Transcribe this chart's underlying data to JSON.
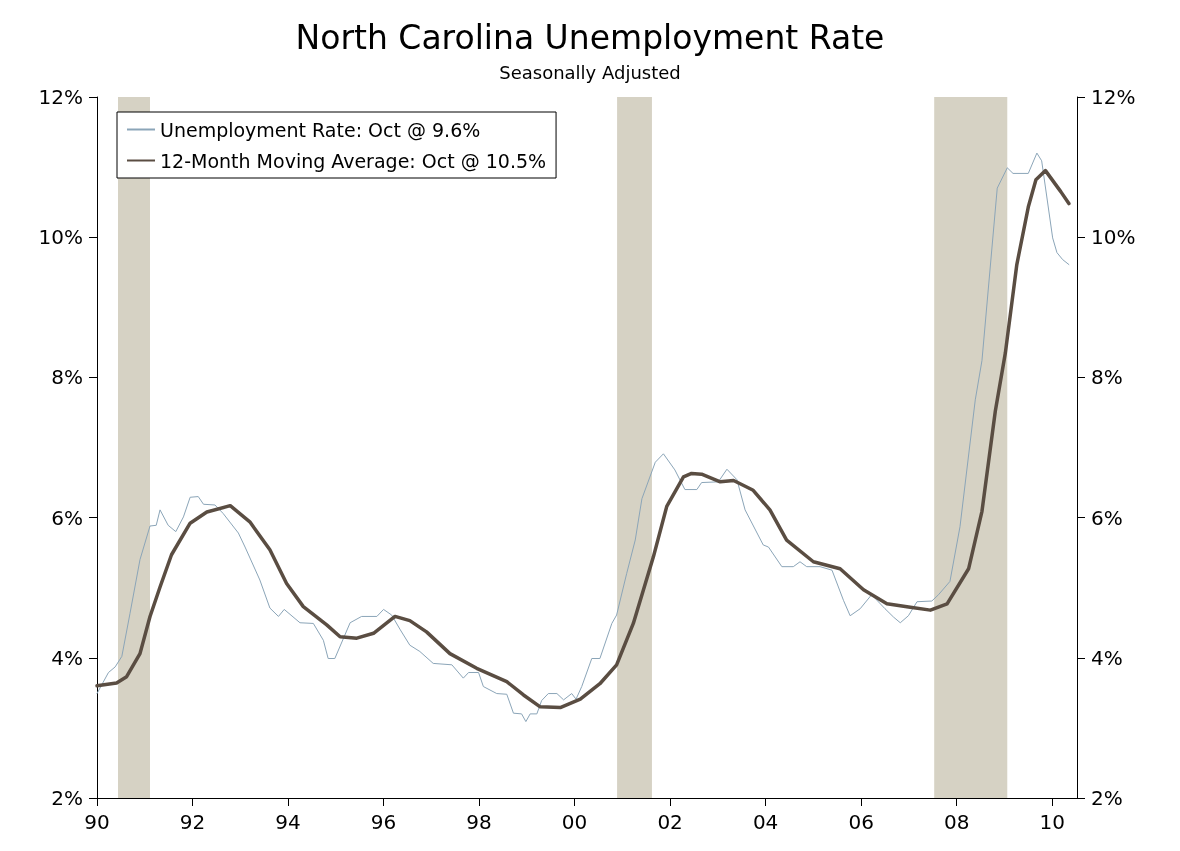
{
  "chart_data": {
    "type": "line",
    "title": "North Carolina Unemployment Rate",
    "subtitle": "Seasonally Adjusted",
    "xlim": [
      1990,
      2010.52
    ],
    "xticks": [
      {
        "value": 1990,
        "label": "90"
      },
      {
        "value": 1992,
        "label": "92"
      },
      {
        "value": 1994,
        "label": "94"
      },
      {
        "value": 1996,
        "label": "96"
      },
      {
        "value": 1998,
        "label": "98"
      },
      {
        "value": 2000,
        "label": "00"
      },
      {
        "value": 2002,
        "label": "02"
      },
      {
        "value": 2004,
        "label": "04"
      },
      {
        "value": 2006,
        "label": "06"
      },
      {
        "value": 2008,
        "label": "08"
      },
      {
        "value": 2010,
        "label": "10"
      }
    ],
    "ylim": [
      2,
      12
    ],
    "yticks": [
      {
        "value": 2,
        "label": "2%"
      },
      {
        "value": 4,
        "label": "4%"
      },
      {
        "value": 6,
        "label": "6%"
      },
      {
        "value": 8,
        "label": "8%"
      },
      {
        "value": 10,
        "label": "10%"
      },
      {
        "value": 12,
        "label": "12%"
      }
    ],
    "y2lim": [
      2,
      12
    ],
    "y2ticks": [
      {
        "value": 2,
        "label": "2%"
      },
      {
        "value": 4,
        "label": "4%"
      },
      {
        "value": 6,
        "label": "6%"
      },
      {
        "value": 8,
        "label": "8%"
      },
      {
        "value": 10,
        "label": "10%"
      },
      {
        "value": 12,
        "label": "12%"
      }
    ],
    "grid": false,
    "legend": "top left",
    "marker": "none",
    "line_style": "solid",
    "bands": [
      {
        "axis": "x",
        "from": 1990.44,
        "to": 1991.11,
        "color": "#d6d2c4"
      },
      {
        "axis": "x",
        "from": 2000.89,
        "to": 2001.62,
        "color": "#d6d2c4"
      },
      {
        "axis": "x",
        "from": 2007.53,
        "to": 2009.06,
        "color": "#d6d2c4"
      }
    ],
    "series": [
      {
        "name": "Unemployment Rate: Oct @ 9.6%",
        "color": "#8ba5b8",
        "x": [
          1990.0,
          1990.24,
          1990.38,
          1990.52,
          1990.69,
          1990.9,
          1991.11,
          1991.24,
          1991.32,
          1991.49,
          1991.65,
          1991.81,
          1991.95,
          1992.12,
          1992.23,
          1992.47,
          1992.64,
          1992.96,
          1993.1,
          1993.41,
          1993.62,
          1993.8,
          1993.92,
          1994.25,
          1994.53,
          1994.74,
          1994.84,
          1994.98,
          1995.3,
          1995.54,
          1995.86,
          1996.0,
          1996.17,
          1996.35,
          1996.55,
          1996.76,
          1997.04,
          1997.43,
          1997.67,
          1997.78,
          1997.99,
          1998.09,
          1998.37,
          1998.58,
          1998.72,
          1998.89,
          1998.98,
          1999.07,
          1999.21,
          1999.31,
          1999.45,
          1999.63,
          1999.77,
          1999.94,
          2000.03,
          2000.15,
          2000.36,
          2000.53,
          2000.78,
          2000.88,
          2001.09,
          2001.27,
          2001.41,
          2001.69,
          2001.86,
          2002.1,
          2002.31,
          2002.56,
          2002.66,
          2003.01,
          2003.19,
          2003.4,
          2003.57,
          2003.95,
          2004.06,
          2004.34,
          2004.58,
          2004.72,
          2004.86,
          2005.14,
          2005.39,
          2005.63,
          2005.77,
          2005.98,
          2006.22,
          2006.5,
          2006.68,
          2006.82,
          2006.99,
          2007.17,
          2007.48,
          2007.62,
          2007.86,
          2008.07,
          2008.39,
          2008.53,
          2008.85,
          2009.06,
          2009.18,
          2009.5,
          2009.68,
          2009.78,
          2010.01,
          2010.1,
          2010.22,
          2010.35
        ],
        "values": [
          3.49,
          3.79,
          3.87,
          4.02,
          4.63,
          5.4,
          5.88,
          5.89,
          6.11,
          5.89,
          5.8,
          6.01,
          6.29,
          6.3,
          6.19,
          6.18,
          6.06,
          5.78,
          5.58,
          5.11,
          4.71,
          4.59,
          4.69,
          4.5,
          4.49,
          4.25,
          3.99,
          3.99,
          4.5,
          4.59,
          4.59,
          4.69,
          4.61,
          4.4,
          4.18,
          4.09,
          3.92,
          3.9,
          3.71,
          3.79,
          3.79,
          3.59,
          3.49,
          3.48,
          3.21,
          3.2,
          3.09,
          3.2,
          3.2,
          3.39,
          3.49,
          3.49,
          3.4,
          3.49,
          3.41,
          3.59,
          3.99,
          3.99,
          4.49,
          4.61,
          5.2,
          5.68,
          6.27,
          6.79,
          6.91,
          6.68,
          6.4,
          6.4,
          6.5,
          6.51,
          6.69,
          6.54,
          6.11,
          5.61,
          5.58,
          5.3,
          5.3,
          5.37,
          5.3,
          5.3,
          5.25,
          4.82,
          4.6,
          4.7,
          4.9,
          4.7,
          4.58,
          4.5,
          4.6,
          4.8,
          4.81,
          4.9,
          5.09,
          5.87,
          7.68,
          8.24,
          10.7,
          10.99,
          10.91,
          10.91,
          11.2,
          11.09,
          9.99,
          9.78,
          9.68,
          9.61
        ]
      },
      {
        "name": "12-Month Moving Average: Oct @ 10.5%",
        "color": "#5a4d42",
        "x": [
          1990.0,
          1990.41,
          1990.62,
          1990.9,
          1991.11,
          1991.32,
          1991.56,
          1991.95,
          1992.3,
          1992.79,
          1993.2,
          1993.62,
          1993.97,
          1994.32,
          1994.81,
          1995.09,
          1995.44,
          1995.79,
          1996.24,
          1996.55,
          1996.9,
          1997.39,
          1997.95,
          1998.58,
          1998.93,
          1999.28,
          1999.7,
          2000.12,
          2000.53,
          2000.88,
          2001.23,
          2001.65,
          2001.93,
          2002.28,
          2002.45,
          2002.66,
          2003.05,
          2003.33,
          2003.74,
          2004.09,
          2004.44,
          2005.0,
          2005.56,
          2006.05,
          2006.54,
          2007.03,
          2007.45,
          2007.8,
          2008.25,
          2008.53,
          2008.81,
          2009.02,
          2009.26,
          2009.5,
          2009.66,
          2009.86,
          2010.18,
          2010.35
        ],
        "values": [
          3.6,
          3.64,
          3.73,
          4.06,
          4.59,
          5.01,
          5.47,
          5.92,
          6.08,
          6.17,
          5.94,
          5.54,
          5.06,
          4.73,
          4.47,
          4.3,
          4.28,
          4.35,
          4.59,
          4.53,
          4.37,
          4.06,
          3.85,
          3.66,
          3.47,
          3.3,
          3.29,
          3.41,
          3.63,
          3.9,
          4.49,
          5.44,
          6.16,
          6.58,
          6.63,
          6.62,
          6.51,
          6.53,
          6.39,
          6.11,
          5.68,
          5.37,
          5.27,
          4.97,
          4.77,
          4.72,
          4.68,
          4.77,
          5.27,
          6.09,
          7.52,
          8.35,
          9.61,
          10.43,
          10.82,
          10.95,
          10.65,
          10.48
        ]
      }
    ]
  }
}
